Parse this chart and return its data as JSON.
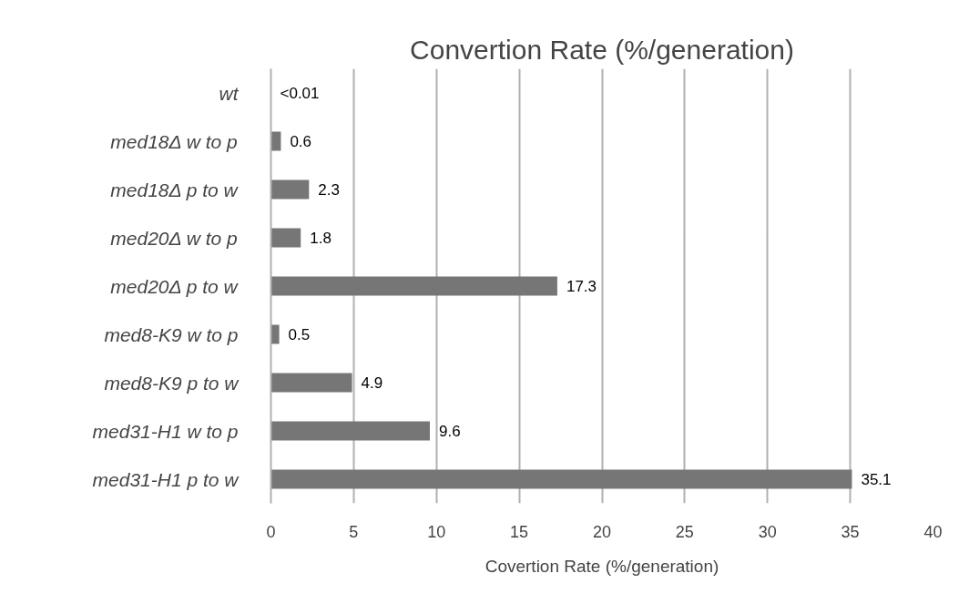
{
  "chart_data": {
    "type": "bar",
    "orientation": "horizontal",
    "title": "Convertion Rate (%/generation)",
    "xlabel": "Covertion Rate (%/generation)",
    "categories": [
      "wt",
      "med18Δ w to p",
      "med18Δ p to w",
      "med20Δ w to p",
      "med20Δ p to w",
      "med8-K9 w to p",
      "med8-K9 p to w",
      "med31-H1 w to p",
      "med31-H1 p to w"
    ],
    "values": [
      0,
      0.6,
      2.3,
      1.8,
      17.3,
      0.5,
      4.9,
      9.6,
      35.1
    ],
    "value_labels": [
      "<0.01",
      "0.6",
      "2.3",
      "1.8",
      "17.3",
      "0.5",
      "4.9",
      "9.6",
      "35.1"
    ],
    "color": "#767676",
    "xlim": [
      0,
      40
    ],
    "xticks": [
      0,
      5,
      10,
      15,
      20,
      25,
      30,
      35,
      40
    ],
    "grid": "x"
  }
}
